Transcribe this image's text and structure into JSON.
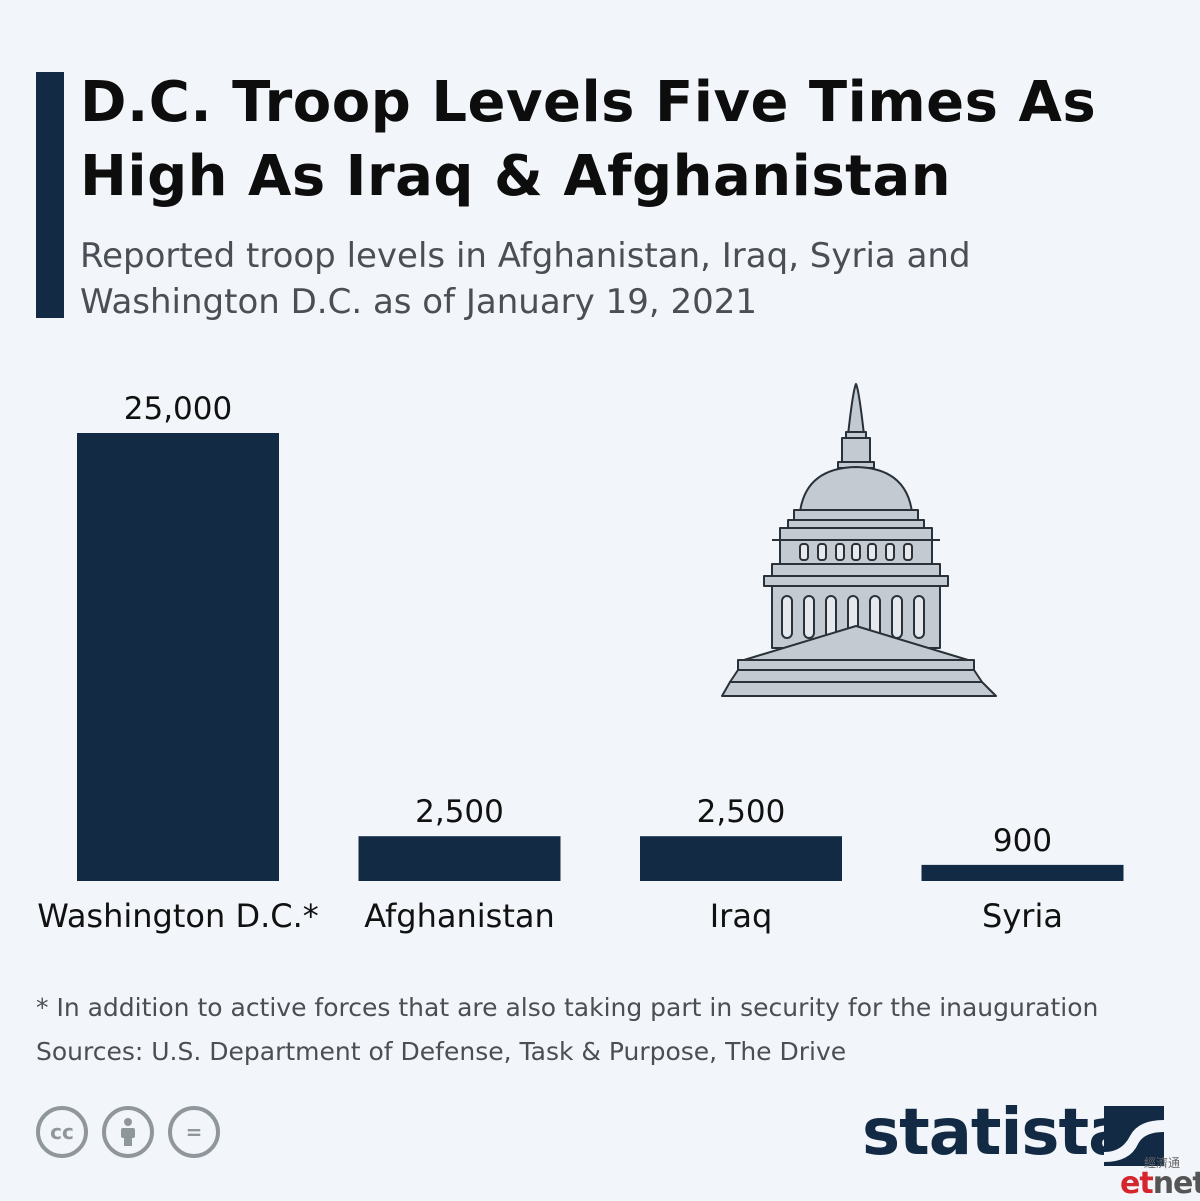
{
  "header": {
    "title": "D.C. Troop Levels Five Times As High As Iraq & Afghanistan",
    "subtitle": "Reported troop levels in Afghanistan, Iraq, Syria and Washington D.C. as of January 19, 2021"
  },
  "chart_data": {
    "type": "bar",
    "categories": [
      "Washington D.C.*",
      "Afghanistan",
      "Iraq",
      "Syria"
    ],
    "values": [
      25000,
      2500,
      2500,
      900
    ],
    "value_labels": [
      "25,000",
      "2,500",
      "2,500",
      "900"
    ],
    "title": "D.C. Troop Levels Five Times As High As Iraq & Afghanistan",
    "xlabel": "",
    "ylabel": "",
    "grid": false,
    "bar_color": "#132a44",
    "illustration": "capitol-dome-icon"
  },
  "footer": {
    "note": "* In addition to active forces that are also taking part in security for the inauguration",
    "sources": "Sources: U.S. Department of Defense, Task & Purpose, The Drive",
    "license_icons": [
      "cc-icon",
      "attribution-icon",
      "no-derivatives-icon"
    ],
    "cc_text": "cc",
    "nd_text": "=",
    "brand": "statista",
    "watermark_cn": "經濟通",
    "watermark_et": "et",
    "watermark_net": "net"
  },
  "colors": {
    "accent": "#132a44",
    "background": "#f2f6fa",
    "text_muted": "#4a4f55"
  }
}
